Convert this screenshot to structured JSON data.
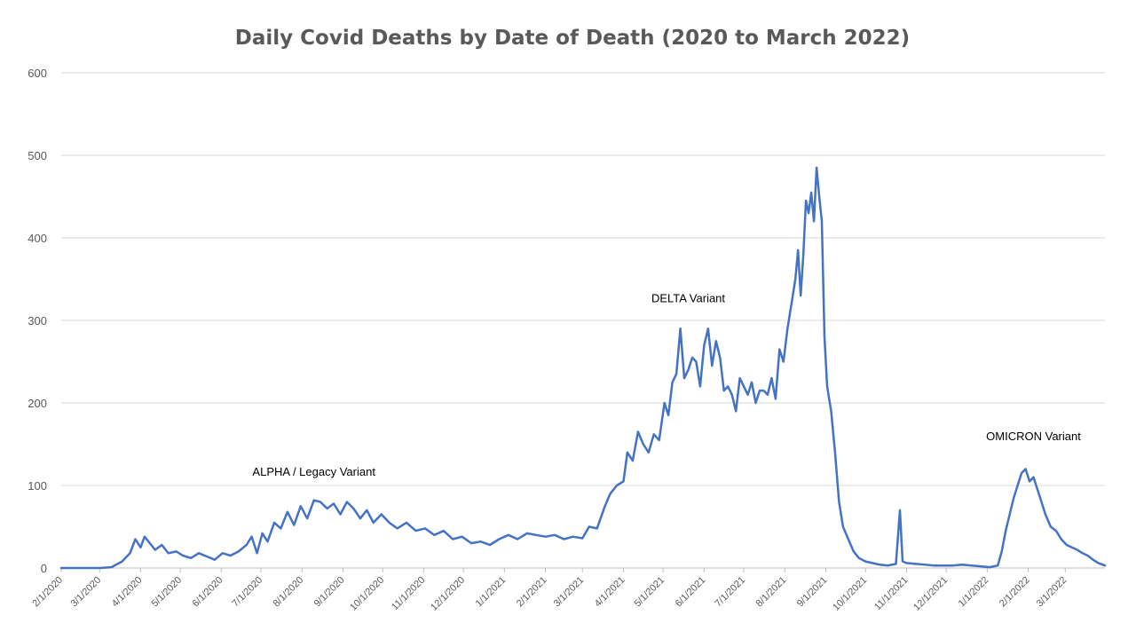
{
  "chart_data": {
    "type": "line",
    "title": "Daily Covid Deaths by Date of Death (2020 to March 2022)",
    "xlabel": "",
    "ylabel": "",
    "ylim": [
      0,
      600
    ],
    "yticks": [
      0,
      100,
      200,
      300,
      400,
      500,
      600
    ],
    "xlim": [
      "2020-02-01",
      "2022-03-31"
    ],
    "xtick_labels": [
      "2/1/2020",
      "3/1/2020",
      "4/1/2020",
      "5/1/2020",
      "6/1/2020",
      "7/1/2020",
      "8/1/2020",
      "9/1/2020",
      "10/1/2020",
      "11/1/2020",
      "12/1/2020",
      "1/1/2021",
      "2/1/2021",
      "3/1/2021",
      "4/1/2021",
      "5/1/2021",
      "6/1/2021",
      "7/1/2021",
      "8/1/2021",
      "9/1/2021",
      "10/1/2021",
      "11/1/2021",
      "12/1/2021",
      "1/1/2022",
      "2/1/2022",
      "3/1/2022"
    ],
    "grid": true,
    "legend": "none",
    "series_color": "#4472C4",
    "annotations": [
      {
        "text": "ALPHA / Legacy Variant",
        "x": "2020-08-10",
        "y": 112
      },
      {
        "text": "DELTA Variant",
        "x": "2021-05-20",
        "y": 322
      },
      {
        "text": "OMICRON Variant",
        "x": "2022-02-05",
        "y": 155
      }
    ],
    "series": [
      {
        "x": [
          "2020-02-01",
          "2020-03-01",
          "2020-03-10",
          "2020-03-18",
          "2020-03-24",
          "2020-03-28",
          "2020-04-01",
          "2020-04-04",
          "2020-04-08",
          "2020-04-12",
          "2020-04-17",
          "2020-04-22",
          "2020-04-28",
          "2020-05-03",
          "2020-05-09",
          "2020-05-15",
          "2020-05-21",
          "2020-05-27",
          "2020-06-02",
          "2020-06-08",
          "2020-06-14",
          "2020-06-20",
          "2020-06-24",
          "2020-06-28",
          "2020-07-02",
          "2020-07-06",
          "2020-07-11",
          "2020-07-16",
          "2020-07-21",
          "2020-07-26",
          "2020-07-31",
          "2020-08-05",
          "2020-08-10",
          "2020-08-15",
          "2020-08-20",
          "2020-08-25",
          "2020-08-30",
          "2020-09-04",
          "2020-09-09",
          "2020-09-14",
          "2020-09-19",
          "2020-09-24",
          "2020-09-30",
          "2020-10-06",
          "2020-10-12",
          "2020-10-19",
          "2020-10-26",
          "2020-11-02",
          "2020-11-09",
          "2020-11-16",
          "2020-11-23",
          "2020-11-30",
          "2020-12-07",
          "2020-12-14",
          "2020-12-21",
          "2020-12-28",
          "2021-01-04",
          "2021-01-11",
          "2021-01-18",
          "2021-01-25",
          "2021-02-01",
          "2021-02-08",
          "2021-02-15",
          "2021-02-22",
          "2021-03-01",
          "2021-03-06",
          "2021-03-12",
          "2021-03-18",
          "2021-03-22",
          "2021-03-27",
          "2021-04-01",
          "2021-04-04",
          "2021-04-08",
          "2021-04-12",
          "2021-04-16",
          "2021-04-20",
          "2021-04-24",
          "2021-04-28",
          "2021-05-02",
          "2021-05-05",
          "2021-05-08",
          "2021-05-11",
          "2021-05-14",
          "2021-05-17",
          "2021-05-20",
          "2021-05-23",
          "2021-05-26",
          "2021-05-29",
          "2021-06-01",
          "2021-06-04",
          "2021-06-07",
          "2021-06-10",
          "2021-06-13",
          "2021-06-16",
          "2021-06-19",
          "2021-06-22",
          "2021-06-25",
          "2021-06-28",
          "2021-07-01",
          "2021-07-04",
          "2021-07-07",
          "2021-07-10",
          "2021-07-13",
          "2021-07-16",
          "2021-07-19",
          "2021-07-22",
          "2021-07-25",
          "2021-07-28",
          "2021-07-31",
          "2021-08-03",
          "2021-08-06",
          "2021-08-09",
          "2021-08-11",
          "2021-08-13",
          "2021-08-15",
          "2021-08-17",
          "2021-08-19",
          "2021-08-21",
          "2021-08-23",
          "2021-08-25",
          "2021-08-27",
          "2021-08-29",
          "2021-08-31",
          "2021-09-02",
          "2021-09-05",
          "2021-09-08",
          "2021-09-11",
          "2021-09-14",
          "2021-09-18",
          "2021-09-22",
          "2021-09-26",
          "2021-10-01",
          "2021-10-06",
          "2021-10-12",
          "2021-10-18",
          "2021-10-24",
          "2021-10-27",
          "2021-10-29",
          "2021-11-01",
          "2021-11-08",
          "2021-11-15",
          "2021-11-22",
          "2021-11-29",
          "2021-12-06",
          "2021-12-13",
          "2021-12-20",
          "2021-12-27",
          "2022-01-03",
          "2022-01-06",
          "2022-01-09",
          "2022-01-12",
          "2022-01-15",
          "2022-01-18",
          "2022-01-21",
          "2022-01-24",
          "2022-01-27",
          "2022-01-30",
          "2022-02-02",
          "2022-02-05",
          "2022-02-08",
          "2022-02-11",
          "2022-02-14",
          "2022-02-18",
          "2022-02-22",
          "2022-02-26",
          "2022-03-02",
          "2022-03-06",
          "2022-03-10",
          "2022-03-14",
          "2022-03-18",
          "2022-03-22",
          "2022-03-26",
          "2022-03-31"
        ],
        "y": [
          0,
          0,
          1,
          8,
          18,
          35,
          25,
          38,
          30,
          22,
          28,
          18,
          20,
          15,
          12,
          18,
          14,
          10,
          18,
          15,
          20,
          28,
          38,
          18,
          42,
          32,
          55,
          48,
          68,
          52,
          75,
          60,
          82,
          80,
          72,
          78,
          65,
          80,
          72,
          60,
          70,
          55,
          65,
          55,
          48,
          55,
          45,
          48,
          40,
          45,
          35,
          38,
          30,
          32,
          28,
          35,
          40,
          35,
          42,
          40,
          38,
          40,
          35,
          38,
          36,
          50,
          48,
          75,
          90,
          100,
          105,
          140,
          130,
          165,
          150,
          140,
          162,
          155,
          200,
          185,
          225,
          235,
          290,
          230,
          240,
          255,
          250,
          220,
          270,
          290,
          245,
          275,
          255,
          215,
          220,
          210,
          190,
          230,
          220,
          210,
          225,
          200,
          215,
          215,
          210,
          230,
          205,
          265,
          250,
          290,
          320,
          350,
          385,
          330,
          380,
          445,
          430,
          455,
          420,
          485,
          450,
          420,
          280,
          220,
          190,
          140,
          80,
          50,
          35,
          20,
          12,
          8,
          6,
          4,
          3,
          5,
          70,
          8,
          6,
          5,
          4,
          3,
          3,
          3,
          4,
          3,
          2,
          1,
          2,
          3,
          20,
          45,
          65,
          85,
          100,
          115,
          120,
          105,
          110,
          95,
          80,
          65,
          50,
          45,
          35,
          28,
          25,
          22,
          18,
          15,
          10,
          6,
          3
        ]
      }
    ]
  }
}
